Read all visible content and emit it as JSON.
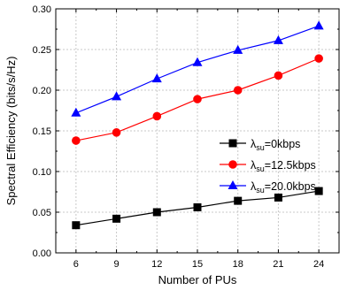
{
  "chart_data": {
    "type": "line",
    "xlabel": "Number of PUs",
    "ylabel": "Spectral Efficiency (bits/s/Hz)",
    "x": [
      6,
      9,
      12,
      15,
      18,
      21,
      24
    ],
    "xlim": [
      4.5,
      25.5
    ],
    "ylim": [
      0.0,
      0.3
    ],
    "xticks": [
      "6",
      "9",
      "12",
      "15",
      "18",
      "21",
      "24"
    ],
    "yticks": [
      "0.00",
      "0.05",
      "0.10",
      "0.15",
      "0.20",
      "0.25",
      "0.30"
    ],
    "grid": true,
    "legend_position": "right",
    "series": [
      {
        "lambda": "λ",
        "subscript": "su",
        "suffix": "=0kbps",
        "marker": "square",
        "color": "#000000",
        "values": [
          0.034,
          0.042,
          0.05,
          0.056,
          0.064,
          0.068,
          0.076
        ]
      },
      {
        "lambda": "λ",
        "subscript": "su",
        "suffix": "=12.5kbps",
        "marker": "circle",
        "color": "#ff0000",
        "values": [
          0.138,
          0.148,
          0.168,
          0.189,
          0.2,
          0.218,
          0.239
        ]
      },
      {
        "lambda": "λ",
        "subscript": "su",
        "suffix": "=20.0kbps",
        "marker": "triangle",
        "color": "#0000ff",
        "values": [
          0.172,
          0.192,
          0.214,
          0.234,
          0.249,
          0.261,
          0.279
        ]
      }
    ]
  }
}
